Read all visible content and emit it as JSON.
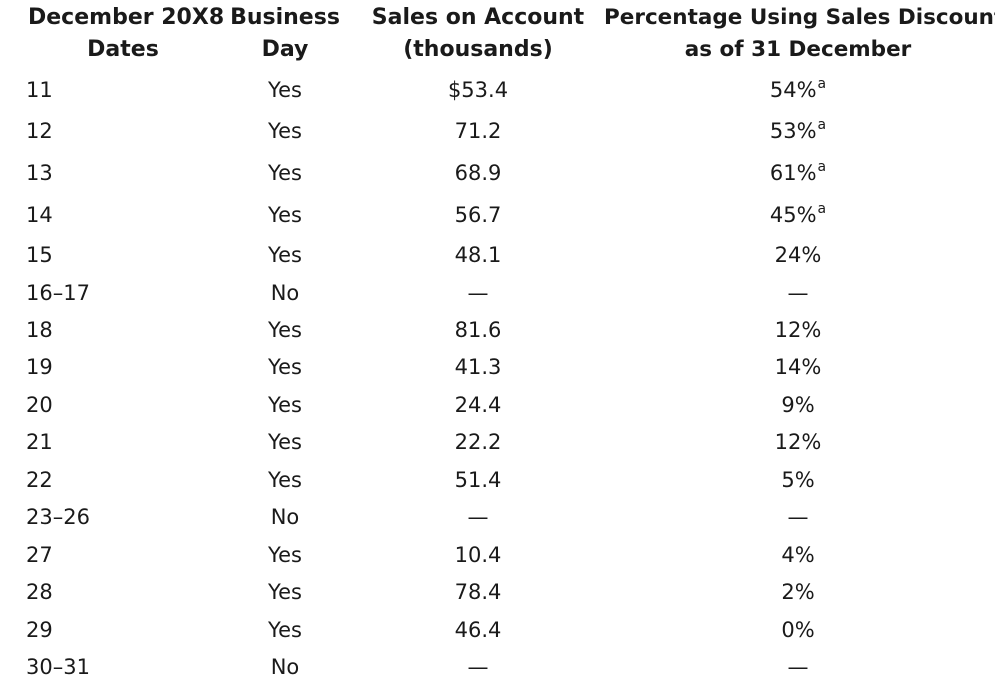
{
  "headers": {
    "dates_line1": "December 20X8",
    "dates_line2": "Dates",
    "business_line1": "Business",
    "business_line2": "Day",
    "sales_line1": "Sales on Account",
    "sales_line2": "(thousands)",
    "pct_line1": "Percentage Using Sales Discount",
    "pct_line2": "as of 31 December"
  },
  "rows": [
    {
      "date": "11",
      "business": "Yes",
      "sales": "$53.4",
      "pct": "54%",
      "footnote": "a"
    },
    {
      "date": "12",
      "business": "Yes",
      "sales": "71.2",
      "pct": "53%",
      "footnote": "a"
    },
    {
      "date": "13",
      "business": "Yes",
      "sales": "68.9",
      "pct": "61%",
      "footnote": "a"
    },
    {
      "date": "14",
      "business": "Yes",
      "sales": "56.7",
      "pct": "45%",
      "footnote": "a"
    },
    {
      "date": "15",
      "business": "Yes",
      "sales": "48.1",
      "pct": "24%",
      "footnote": ""
    },
    {
      "date": "16–17",
      "business": "No",
      "sales": "—",
      "pct": "—",
      "footnote": ""
    },
    {
      "date": "18",
      "business": "Yes",
      "sales": "81.6",
      "pct": "12%",
      "footnote": ""
    },
    {
      "date": "19",
      "business": "Yes",
      "sales": "41.3",
      "pct": "14%",
      "footnote": ""
    },
    {
      "date": "20",
      "business": "Yes",
      "sales": "24.4",
      "pct": "9%",
      "footnote": ""
    },
    {
      "date": "21",
      "business": "Yes",
      "sales": "22.2",
      "pct": "12%",
      "footnote": ""
    },
    {
      "date": "22",
      "business": "Yes",
      "sales": "51.4",
      "pct": "5%",
      "footnote": ""
    },
    {
      "date": "23–26",
      "business": "No",
      "sales": "—",
      "pct": "—",
      "footnote": ""
    },
    {
      "date": "27",
      "business": "Yes",
      "sales": "10.4",
      "pct": "4%",
      "footnote": ""
    },
    {
      "date": "28",
      "business": "Yes",
      "sales": "78.4",
      "pct": "2%",
      "footnote": ""
    },
    {
      "date": "29",
      "business": "Yes",
      "sales": "46.4",
      "pct": "0%",
      "footnote": ""
    },
    {
      "date": "30–31",
      "business": "No",
      "sales": "—",
      "pct": "—",
      "footnote": ""
    }
  ]
}
